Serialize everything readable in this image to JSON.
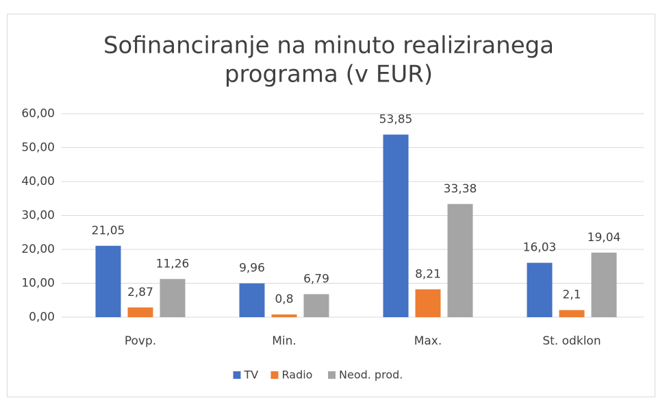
{
  "chart_data": {
    "type": "bar",
    "title": [
      "Sofinanciranje na minuto realiziranega",
      "programa (v EUR)"
    ],
    "categories": [
      "Povp.",
      "Min.",
      "Max.",
      "St. odklon"
    ],
    "series": [
      {
        "name": "TV",
        "color": "#4472c4",
        "values": [
          21.05,
          9.96,
          53.85,
          16.03
        ],
        "value_labels": [
          "21,05",
          "9,96",
          "53,85",
          "16,03"
        ]
      },
      {
        "name": "Radio",
        "color": "#ed7d31",
        "values": [
          2.87,
          0.8,
          8.21,
          2.1
        ],
        "value_labels": [
          "2,87",
          "0,8",
          "8,21",
          "2,1"
        ]
      },
      {
        "name": "Neod. prod.",
        "color": "#a5a5a5",
        "values": [
          11.26,
          6.79,
          33.38,
          19.04
        ],
        "value_labels": [
          "11,26",
          "6,79",
          "33,38",
          "19,04"
        ]
      }
    ],
    "ylim": [
      0,
      60
    ],
    "yticks": [
      {
        "value": 0,
        "label": "0,00"
      },
      {
        "value": 10,
        "label": "10,00"
      },
      {
        "value": 20,
        "label": "20,00"
      },
      {
        "value": 30,
        "label": "30,00"
      },
      {
        "value": 40,
        "label": "40,00"
      },
      {
        "value": 50,
        "label": "50,00"
      },
      {
        "value": 60,
        "label": "60,00"
      }
    ],
    "grid": true,
    "legend": "bottom"
  }
}
